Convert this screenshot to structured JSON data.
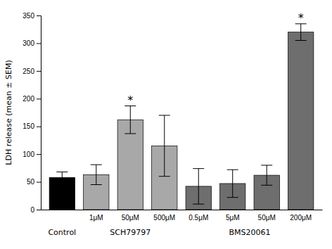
{
  "chart_data": {
    "type": "bar",
    "categories": [
      null,
      "1μM",
      "50μM",
      "500μM",
      "0.5μM",
      "5μM",
      "50μM",
      "200μM"
    ],
    "values": [
      58,
      63,
      162,
      115,
      42,
      47,
      62,
      320
    ],
    "errors": [
      10,
      18,
      25,
      55,
      32,
      25,
      18,
      15
    ],
    "colors": [
      "#000000",
      "#a8a8a8",
      "#a8a8a8",
      "#a8a8a8",
      "#6e6e6e",
      "#6e6e6e",
      "#6e6e6e",
      "#6e6e6e"
    ],
    "y_label": "LDH release (mean ± SEM)",
    "ylim": [
      0,
      350
    ],
    "yticks": [
      0,
      50,
      100,
      150,
      200,
      250,
      300,
      350
    ],
    "groups": [
      {
        "label": "Control",
        "size": 1
      },
      {
        "label": "SCH79797",
        "size": 3
      },
      {
        "label": "BMS20061",
        "size": 4
      }
    ],
    "annotations": [
      {
        "text": "*",
        "index": 2
      },
      {
        "text": "*",
        "index": 7
      }
    ],
    "grid": false
  }
}
